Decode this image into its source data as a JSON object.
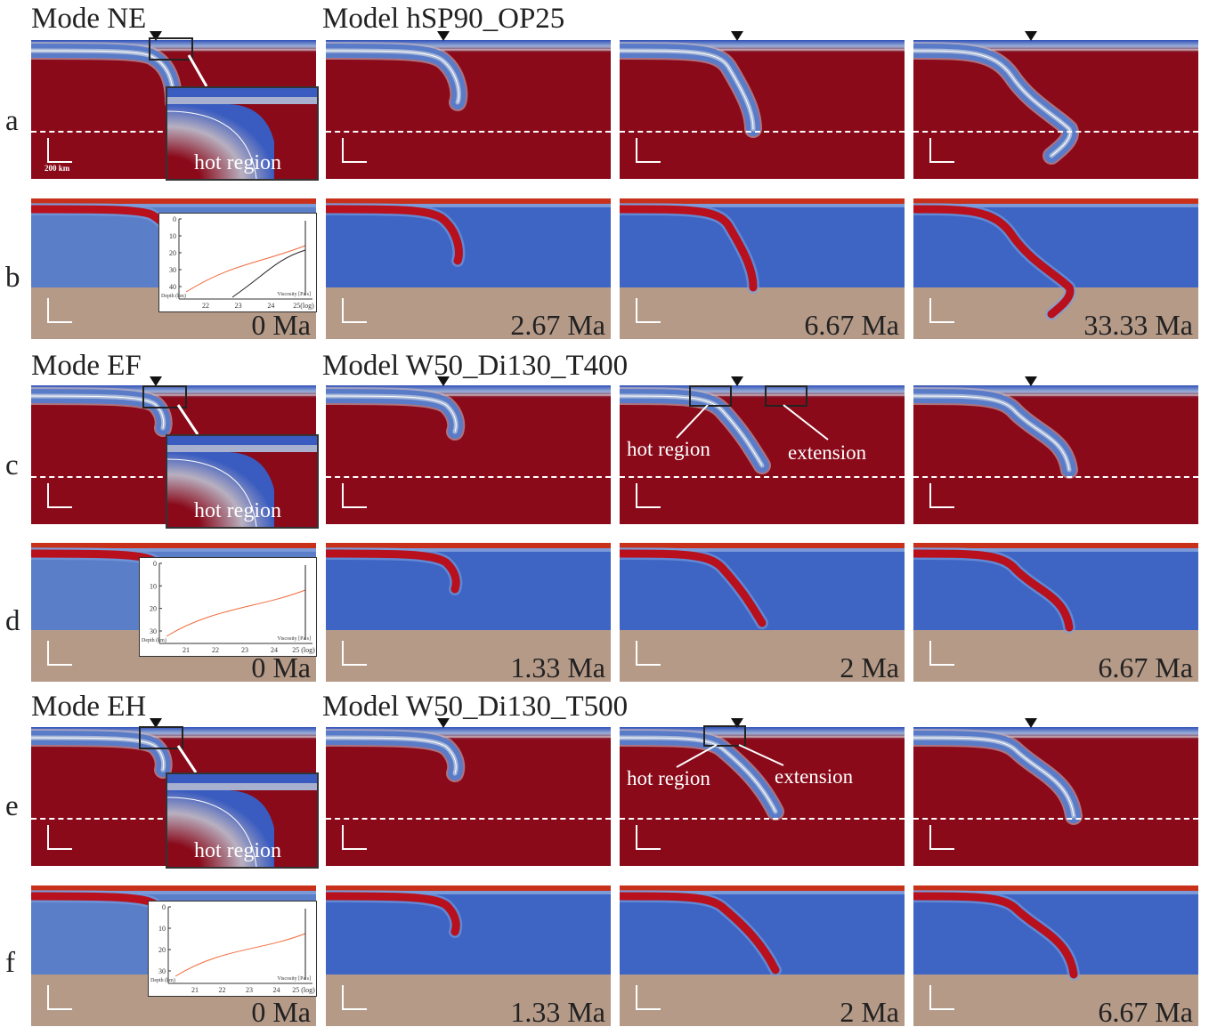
{
  "titles": {
    "mode_ne": "Mode NE",
    "model_ne": "Model hSP90_OP25",
    "mode_ef": "Mode EF",
    "model_ef": "Model W50_Di130_T400",
    "mode_eh": "Mode EH",
    "model_eh": "Model W50_Di130_T500"
  },
  "row_labels": [
    "a",
    "b",
    "c",
    "d",
    "e",
    "f"
  ],
  "times": {
    "b": [
      "0 Ma",
      "2.67 Ma",
      "6.67 Ma",
      "33.33 Ma"
    ],
    "d": [
      "0 Ma",
      "1.33 Ma",
      "2 Ma",
      "6.67 Ma"
    ],
    "f": [
      "0 Ma",
      "1.33 Ma",
      "2 Ma",
      "6.67 Ma"
    ]
  },
  "annotations": {
    "hot_region": "hot region",
    "extension": "extension",
    "scale_bar": "200 km"
  },
  "graph": {
    "depth_label": "Depth (km)",
    "viscosity_label": "Viscosity [Pa s]",
    "b_yticks": [
      "0",
      "10",
      "20",
      "30",
      "40"
    ],
    "b_xticks": [
      "22",
      "23",
      "24",
      "25(log)"
    ],
    "d_yticks": [
      "0",
      "10",
      "20",
      "30"
    ],
    "d_xticks": [
      "21",
      "22",
      "23",
      "24",
      "25 (log)"
    ],
    "f_yticks": [
      "0",
      "10",
      "20",
      "30"
    ],
    "f_xticks": [
      "21",
      "22",
      "23",
      "24",
      "25 (log)"
    ]
  },
  "colors": {
    "hot_mantle": "#8a0a1a",
    "cold": "#3a5fc0",
    "lower_mantle": "#b59a88",
    "curve_orange": "#f06a3a",
    "curve_black": "#222222"
  }
}
